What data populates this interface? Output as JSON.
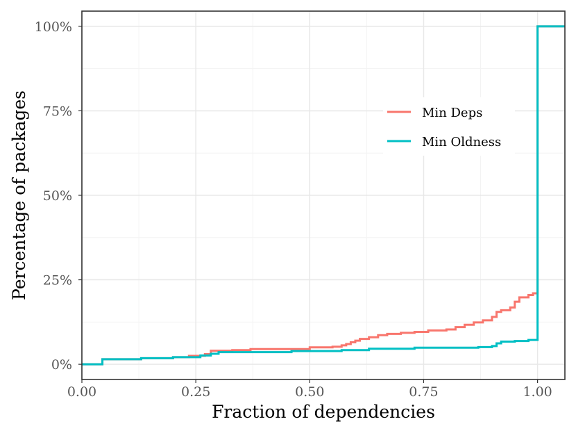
{
  "chart_data": {
    "type": "line",
    "title": "",
    "xlabel": "Fraction of dependencies",
    "ylabel": "Percentage of packages",
    "xlim": [
      0.0,
      1.06
    ],
    "ylim": [
      -4.5,
      104.5
    ],
    "x_ticks": [
      {
        "value": 0.0,
        "label": "0.00"
      },
      {
        "value": 0.25,
        "label": "0.25"
      },
      {
        "value": 0.5,
        "label": "0.50"
      },
      {
        "value": 0.75,
        "label": "0.75"
      },
      {
        "value": 1.0,
        "label": "1.00"
      }
    ],
    "y_ticks": [
      {
        "value": 0,
        "label": "0%"
      },
      {
        "value": 25,
        "label": "25%"
      },
      {
        "value": 50,
        "label": "50%"
      },
      {
        "value": 75,
        "label": "75%"
      },
      {
        "value": 100,
        "label": "100%"
      }
    ],
    "grid": true,
    "legend_position": "right",
    "series": [
      {
        "name": "Min Deps",
        "color": "#F8766D",
        "step": true,
        "x": [
          0.0,
          0.045,
          0.13,
          0.2,
          0.235,
          0.27,
          0.283,
          0.33,
          0.37,
          0.5,
          0.55,
          0.57,
          0.58,
          0.59,
          0.6,
          0.61,
          0.63,
          0.65,
          0.67,
          0.7,
          0.73,
          0.76,
          0.8,
          0.82,
          0.84,
          0.86,
          0.88,
          0.9,
          0.91,
          0.92,
          0.94,
          0.95,
          0.96,
          0.98,
          0.99,
          1.0,
          1.0,
          1.06
        ],
        "y": [
          0.0,
          1.5,
          1.8,
          2.1,
          2.5,
          3.0,
          4.0,
          4.2,
          4.5,
          5.0,
          5.2,
          5.6,
          6.0,
          6.5,
          7.0,
          7.5,
          8.0,
          8.6,
          9.0,
          9.3,
          9.6,
          10.0,
          10.3,
          11.0,
          11.7,
          12.4,
          13.0,
          14.0,
          15.5,
          16.0,
          16.8,
          18.5,
          19.8,
          20.5,
          21.0,
          21.0,
          100.0,
          100.0
        ]
      },
      {
        "name": "Min Oldness",
        "color": "#00BFC4",
        "step": true,
        "x": [
          0.0,
          0.045,
          0.13,
          0.2,
          0.26,
          0.283,
          0.3,
          0.46,
          0.57,
          0.63,
          0.73,
          0.87,
          0.9,
          0.91,
          0.92,
          0.95,
          0.98,
          1.0,
          1.0,
          1.06
        ],
        "y": [
          0.0,
          1.5,
          1.8,
          2.1,
          2.6,
          3.1,
          3.6,
          3.9,
          4.2,
          4.6,
          4.9,
          5.1,
          5.4,
          6.2,
          6.7,
          6.9,
          7.2,
          7.2,
          100.0,
          100.0
        ]
      }
    ]
  }
}
